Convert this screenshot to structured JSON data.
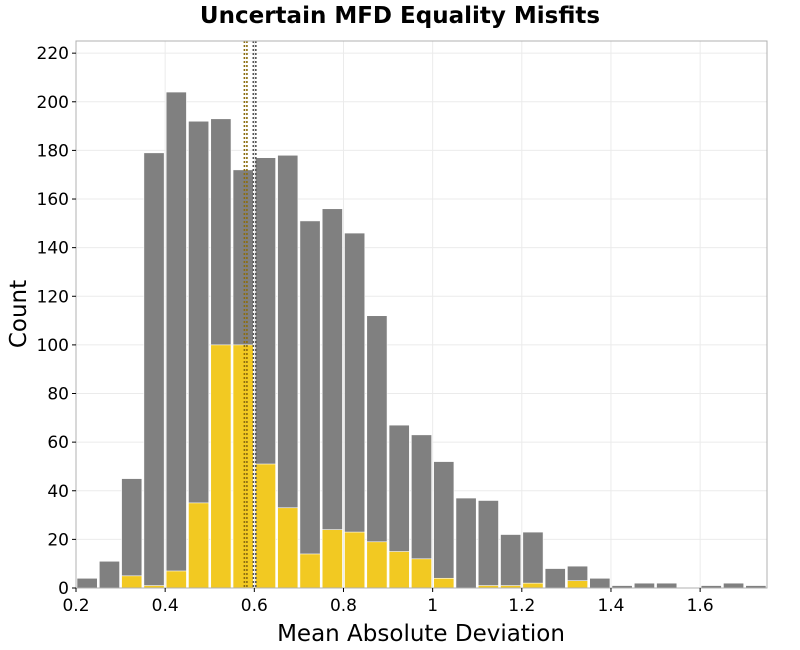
{
  "chart_data": {
    "type": "bar",
    "title": "Uncertain MFD Equality Misfits",
    "xlabel": "Mean Absolute Deviation",
    "ylabel": "Count",
    "xlim": [
      0.2,
      1.75
    ],
    "ylim": [
      0,
      225
    ],
    "bin_width": 0.05,
    "bin_starts": [
      0.2,
      0.25,
      0.3,
      0.35,
      0.4,
      0.45,
      0.5,
      0.55,
      0.6,
      0.65,
      0.7,
      0.75,
      0.8,
      0.85,
      0.9,
      0.95,
      1.0,
      1.05,
      1.1,
      1.15,
      1.2,
      1.25,
      1.3,
      1.35,
      1.4,
      1.45,
      1.5,
      1.55,
      1.6,
      1.65,
      1.7
    ],
    "series": [
      {
        "color": "#808080",
        "values": [
          4,
          11,
          45,
          179,
          204,
          192,
          193,
          172,
          177,
          178,
          151,
          156,
          146,
          112,
          67,
          63,
          52,
          37,
          36,
          22,
          23,
          8,
          9,
          4,
          1,
          2,
          2,
          0,
          1,
          2,
          1
        ]
      },
      {
        "color": "#f2c922",
        "values": [
          0,
          0,
          5,
          1,
          7,
          35,
          100,
          100,
          51,
          33,
          14,
          24,
          23,
          19,
          15,
          12,
          4,
          0,
          1,
          1,
          2,
          0,
          3,
          0,
          0,
          0,
          0,
          0,
          0,
          0,
          0
        ]
      }
    ],
    "reference_lines": [
      {
        "x": 0.58,
        "color": "#8b6d10",
        "style": "dotted"
      },
      {
        "x": 0.6,
        "color": "#555555",
        "style": "dotted"
      }
    ],
    "x_ticks": [
      {
        "value": 0.2,
        "label": "0.2"
      },
      {
        "value": 0.4,
        "label": "0.4"
      },
      {
        "value": 0.6,
        "label": "0.6"
      },
      {
        "value": 0.8,
        "label": "0.8"
      },
      {
        "value": 1.0,
        "label": "1"
      },
      {
        "value": 1.2,
        "label": "1.2"
      },
      {
        "value": 1.4,
        "label": "1.4"
      },
      {
        "value": 1.6,
        "label": "1.6"
      }
    ],
    "y_ticks": [
      {
        "value": 0,
        "label": "0"
      },
      {
        "value": 20,
        "label": "20"
      },
      {
        "value": 40,
        "label": "40"
      },
      {
        "value": 60,
        "label": "60"
      },
      {
        "value": 80,
        "label": "80"
      },
      {
        "value": 100,
        "label": "100"
      },
      {
        "value": 120,
        "label": "120"
      },
      {
        "value": 140,
        "label": "140"
      },
      {
        "value": 160,
        "label": "160"
      },
      {
        "value": 180,
        "label": "180"
      },
      {
        "value": 200,
        "label": "200"
      },
      {
        "value": 220,
        "label": "220"
      }
    ],
    "grid": true,
    "legend": "none"
  }
}
